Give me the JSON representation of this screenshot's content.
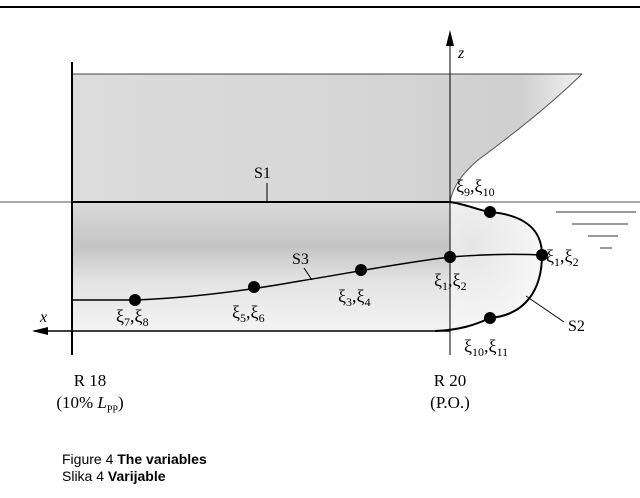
{
  "surfaces": {
    "s1": "S1",
    "s2": "S2",
    "s3": "S3"
  },
  "axes": {
    "x": "x",
    "z": "z"
  },
  "points": [
    {
      "id": "p9-10",
      "label_a": "ξ",
      "sub_a": "9",
      "label_b": "ξ",
      "sub_b": "10"
    },
    {
      "id": "p1-2-bulb",
      "label_a": "ξ",
      "sub_a": "1",
      "label_b": "ξ",
      "sub_b": "2"
    },
    {
      "id": "p1-2",
      "label_a": "ξ",
      "sub_a": "1",
      "label_b": "ξ",
      "sub_b": "2"
    },
    {
      "id": "p3-4",
      "label_a": "ξ",
      "sub_a": "3",
      "label_b": "ξ",
      "sub_b": "4"
    },
    {
      "id": "p5-6",
      "label_a": "ξ",
      "sub_a": "5",
      "label_b": "ξ",
      "sub_b": "6"
    },
    {
      "id": "p7-8",
      "label_a": "ξ",
      "sub_a": "7",
      "label_b": "ξ",
      "sub_b": "8"
    },
    {
      "id": "p10-11",
      "label_a": "ξ",
      "sub_a": "10",
      "label_b": "ξ",
      "sub_b": "11"
    }
  ],
  "stations": {
    "r18": {
      "name": "R 18",
      "note_prefix": "(10% ",
      "note_var": "L",
      "note_sub": "PP",
      "note_suffix": ")"
    },
    "r20": {
      "name": "R 20",
      "note": "(P.O.)"
    }
  },
  "caption": {
    "line1_prefix": "Figure 4 ",
    "line1_bold": "The variables",
    "line2_prefix": "Slika 4 ",
    "line2_bold": "Varijable"
  }
}
